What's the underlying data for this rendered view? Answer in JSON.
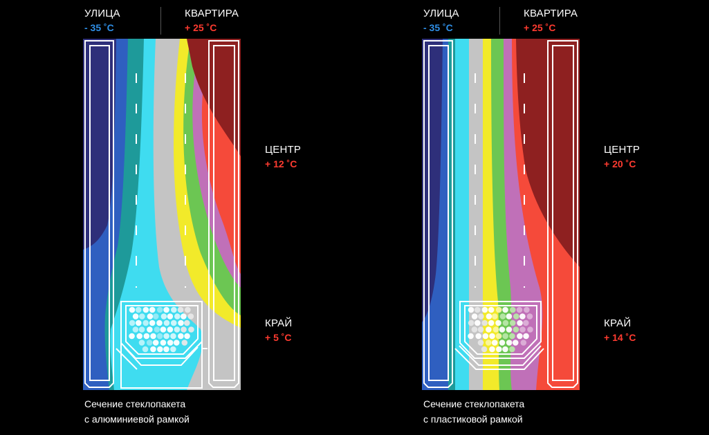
{
  "panels": [
    {
      "outside_title": "УЛИЦА",
      "outside_temp": "- 35 ˚C",
      "inside_title": "КВАРТИРА",
      "inside_temp": "+ 25 ˚C",
      "center_title": "ЦЕНТР",
      "center_temp": "+ 12 ˚C",
      "edge_title": "КРАЙ",
      "edge_temp": "+ 5 ˚C",
      "caption_line1": "Сечение стеклопакета",
      "caption_line2": "с алюминиевой рамкой"
    },
    {
      "outside_title": "УЛИЦА",
      "outside_temp": "- 35 ˚C",
      "inside_title": "КВАРТИРА",
      "inside_temp": "+ 25 ˚C",
      "center_title": "ЦЕНТР",
      "center_temp": "+ 20 ˚C",
      "edge_title": "КРАЙ",
      "edge_temp": "+ 14 ˚C",
      "caption_line1": "Сечение стеклопакета",
      "caption_line2": "с пластиковой рамкой"
    }
  ],
  "colors": {
    "cold_text": "#2f8fe6",
    "warm_text": "#ff3b30",
    "zone_navy": "#2e2f7a",
    "zone_blue": "#2f5fc0",
    "zone_teal": "#1e9a9a",
    "zone_cyan": "#3fdcf0",
    "zone_grey": "#c4c4c4",
    "zone_yellow": "#f2ea2a",
    "zone_green": "#6cc653",
    "zone_violet": "#c070b8",
    "zone_red": "#f54a3a",
    "zone_darkred": "#8e2020"
  }
}
